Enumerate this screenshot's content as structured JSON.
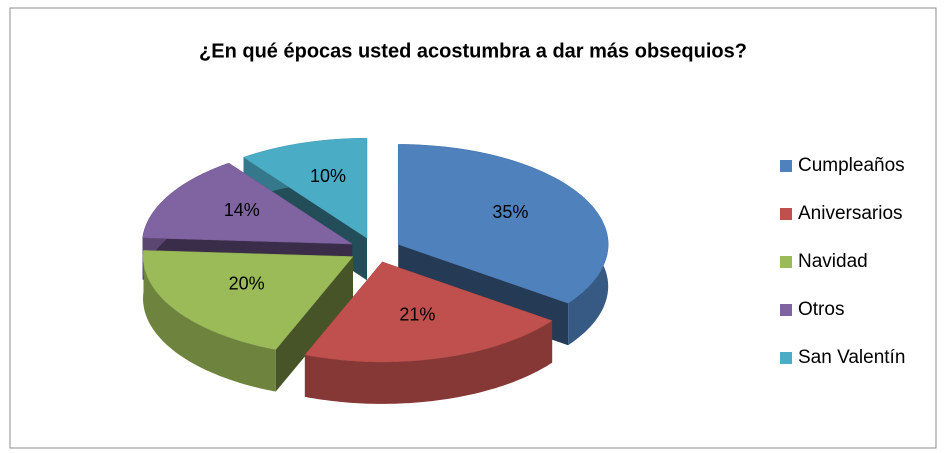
{
  "chart_data": {
    "type": "pie3d",
    "title": "¿En qué épocas usted acostumbra a dar más obsequios?",
    "categories": [
      "Cumpleaños",
      "Aniversarios",
      "Navidad",
      "Otros",
      "San Valentín"
    ],
    "values": [
      35,
      21,
      20,
      14,
      10
    ],
    "value_labels": [
      "35%",
      "21%",
      "20%",
      "14%",
      "10%"
    ],
    "colors": [
      "#4f81bd",
      "#c0504d",
      "#9bbb59",
      "#8064a2",
      "#4bacc6"
    ],
    "legend": "right"
  }
}
